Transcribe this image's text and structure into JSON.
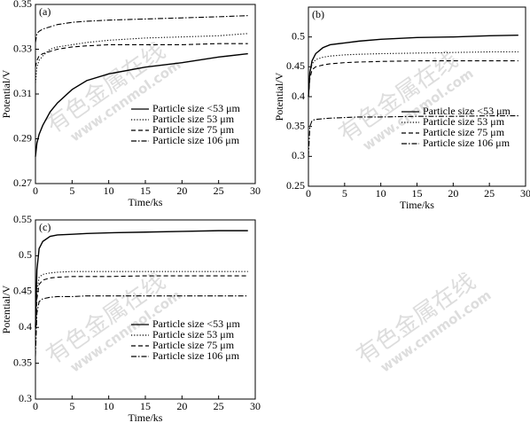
{
  "chart_data": [
    {
      "type": "line",
      "label": "(a)",
      "x_label": "Time/ks",
      "y_label": "Potential/V",
      "x": [
        0,
        0.2,
        0.5,
        1,
        2,
        3,
        5,
        7,
        10,
        15,
        20,
        25,
        29
      ],
      "xlim": [
        0,
        30
      ],
      "xticks": [
        0,
        5,
        10,
        15,
        20,
        25,
        30
      ],
      "ylim": [
        0.27,
        0.35
      ],
      "yticks": [
        0.27,
        0.29,
        0.31,
        0.33,
        0.35
      ],
      "legend": "lower right",
      "series": [
        {
          "name": "Particle size <53 μm",
          "color": "#000000",
          "dash": "solid",
          "values": [
            0.282,
            0.288,
            0.292,
            0.296,
            0.302,
            0.306,
            0.312,
            0.316,
            0.319,
            0.322,
            0.324,
            0.3265,
            0.328
          ]
        },
        {
          "name": "Particle size 53 μm",
          "color": "#000000",
          "dash": "dotted",
          "values": [
            0.315,
            0.322,
            0.325,
            0.327,
            0.33,
            0.331,
            0.332,
            0.333,
            0.334,
            0.335,
            0.3355,
            0.336,
            0.337
          ]
        },
        {
          "name": "Particle size 75 μm",
          "color": "#000000",
          "dash": "dashed",
          "values": [
            0.322,
            0.325,
            0.327,
            0.328,
            0.329,
            0.33,
            0.331,
            0.3315,
            0.332,
            0.332,
            0.332,
            0.3325,
            0.3325
          ]
        },
        {
          "name": "Particle size 106 μm",
          "color": "#000000",
          "dash": "dashdot",
          "values": [
            0.333,
            0.337,
            0.338,
            0.339,
            0.34,
            0.341,
            0.342,
            0.3425,
            0.343,
            0.3435,
            0.344,
            0.3445,
            0.345
          ]
        }
      ]
    },
    {
      "type": "line",
      "label": "(b)",
      "x_label": "Time/ks",
      "y_label": "Potential/V",
      "x": [
        0,
        0.2,
        0.5,
        1,
        2,
        3,
        5,
        7,
        10,
        15,
        20,
        25,
        29
      ],
      "xlim": [
        0,
        30
      ],
      "xticks": [
        0,
        5,
        10,
        15,
        20,
        25,
        30
      ],
      "ylim": [
        0.25,
        0.55
      ],
      "yticks": [
        0.25,
        0.3,
        0.35,
        0.4,
        0.45,
        0.5
      ],
      "legend": "lower right",
      "series": [
        {
          "name": "Particle size <53 μm",
          "color": "#000000",
          "dash": "solid",
          "values": [
            0.4,
            0.44,
            0.46,
            0.472,
            0.482,
            0.487,
            0.49,
            0.493,
            0.496,
            0.499,
            0.5,
            0.502,
            0.503
          ]
        },
        {
          "name": "Particle size 53 μm",
          "color": "#000000",
          "dash": "dotted",
          "values": [
            0.4,
            0.44,
            0.455,
            0.462,
            0.466,
            0.468,
            0.47,
            0.471,
            0.472,
            0.473,
            0.474,
            0.475,
            0.475
          ]
        },
        {
          "name": "Particle size 75 μm",
          "color": "#000000",
          "dash": "dashed",
          "values": [
            0.4,
            0.43,
            0.445,
            0.45,
            0.453,
            0.455,
            0.457,
            0.458,
            0.459,
            0.46,
            0.46,
            0.46,
            0.46
          ]
        },
        {
          "name": "Particle size 106 μm",
          "color": "#000000",
          "dash": "dashdot",
          "values": [
            0.3,
            0.35,
            0.36,
            0.362,
            0.363,
            0.364,
            0.365,
            0.366,
            0.366,
            0.367,
            0.367,
            0.368,
            0.368
          ]
        }
      ]
    },
    {
      "type": "line",
      "label": "(c)",
      "x_label": "Time/ks",
      "y_label": "Potential/V",
      "x": [
        0,
        0.2,
        0.5,
        1,
        2,
        3,
        5,
        7,
        10,
        15,
        20,
        25,
        29
      ],
      "xlim": [
        0,
        30
      ],
      "xticks": [
        0,
        5,
        10,
        15,
        20,
        25,
        30
      ],
      "ylim": [
        0.3,
        0.55
      ],
      "yticks": [
        0.3,
        0.35,
        0.4,
        0.45,
        0.5,
        0.55
      ],
      "legend": "lower right",
      "series": [
        {
          "name": "Particle size <53 μm",
          "color": "#000000",
          "dash": "solid",
          "values": [
            0.4,
            0.48,
            0.51,
            0.52,
            0.527,
            0.529,
            0.53,
            0.531,
            0.532,
            0.533,
            0.534,
            0.535,
            0.535
          ]
        },
        {
          "name": "Particle size 53 μm",
          "color": "#000000",
          "dash": "dotted",
          "values": [
            0.39,
            0.45,
            0.47,
            0.474,
            0.476,
            0.477,
            0.478,
            0.478,
            0.478,
            0.478,
            0.478,
            0.478,
            0.478
          ]
        },
        {
          "name": "Particle size 75 μm",
          "color": "#000000",
          "dash": "dashed",
          "values": [
            0.38,
            0.44,
            0.46,
            0.466,
            0.469,
            0.47,
            0.471,
            0.471,
            0.471,
            0.472,
            0.472,
            0.472,
            0.472
          ]
        },
        {
          "name": "Particle size 106 μm",
          "color": "#000000",
          "dash": "dashdot",
          "values": [
            0.36,
            0.42,
            0.436,
            0.44,
            0.442,
            0.443,
            0.443,
            0.444,
            0.444,
            0.444,
            0.444,
            0.444,
            0.444
          ]
        }
      ]
    }
  ],
  "watermarks": [
    {
      "name": "有色金属在线",
      "url": "www.cnnmol.com"
    },
    {
      "name": "有色金属在线",
      "url": "www.cnnmol.com"
    },
    {
      "name": "有色金属在线",
      "url": "www.cnnmol.com"
    },
    {
      "name": "有色金属在线",
      "url": "www.cnnmol.com"
    }
  ]
}
